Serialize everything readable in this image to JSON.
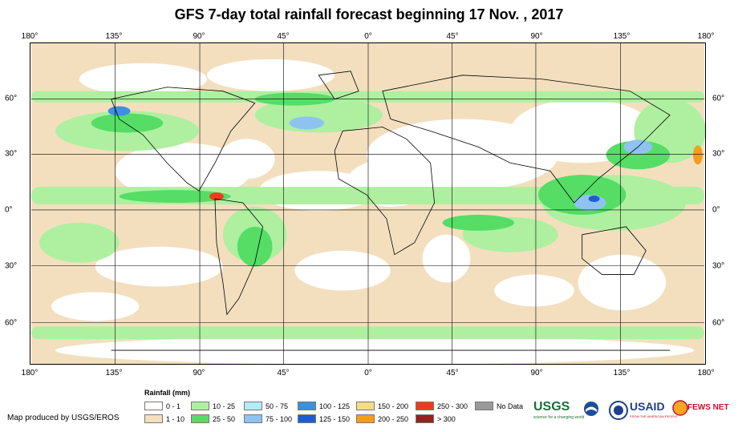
{
  "title": "GFS 7-day total rainfall forecast beginning 17 Nov. , 2017",
  "lon_ticks": [
    "180°",
    "135°",
    "90°",
    "45°",
    "0°",
    "45°",
    "90°",
    "135°",
    "180°"
  ],
  "lat_ticks": [
    "60°",
    "30°",
    "0°",
    "30°",
    "60°"
  ],
  "legend": {
    "title": "Rainfall (mm)",
    "items": [
      {
        "label": "0 - 1",
        "color": "#ffffff"
      },
      {
        "label": "1 - 10",
        "color": "#f3dfbe"
      },
      {
        "label": "10 - 25",
        "color": "#aef0a0"
      },
      {
        "label": "25 - 50",
        "color": "#55dd66"
      },
      {
        "label": "50 - 75",
        "color": "#b3ecf6"
      },
      {
        "label": "75 - 100",
        "color": "#8ec3ef"
      },
      {
        "label": "100 - 125",
        "color": "#3e8fe0"
      },
      {
        "label": "125 - 150",
        "color": "#1b5fcf"
      },
      {
        "label": "150 - 200",
        "color": "#f5dd86"
      },
      {
        "label": "200 - 250",
        "color": "#f59e1c"
      },
      {
        "label": "250 - 300",
        "color": "#ef3b1d"
      },
      {
        "label": "> 300",
        "color": "#9a1f1f"
      },
      {
        "label": "No Data",
        "color": "#999999"
      }
    ]
  },
  "credit": "Map produced by USGS/EROS",
  "logos": {
    "usgs": "USGS",
    "usgs_tagline": "science for a changing world",
    "usaid": "USAID",
    "usaid_tagline": "FROM THE AMERICAN PEOPLE",
    "fewsnet": "FEWS NET"
  },
  "colors": {
    "land_outline": "#000000",
    "grid": "#000000"
  }
}
